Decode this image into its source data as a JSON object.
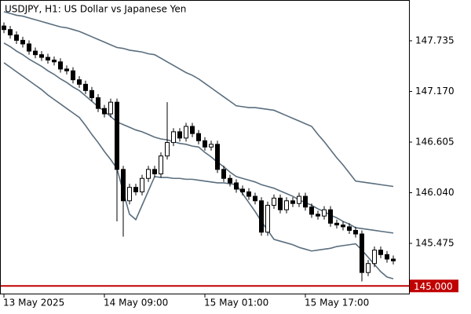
{
  "chart_data": {
    "type": "candlestick",
    "title": "USDJPY, H1:  US Dollar vs Japanese Yen",
    "categories": [
      "13 May 2025",
      null,
      null,
      null,
      null,
      null,
      null,
      null,
      null,
      null,
      null,
      null,
      null,
      null,
      null,
      null,
      "14 May 09:00",
      null,
      null,
      null,
      null,
      null,
      null,
      null,
      null,
      null,
      null,
      null,
      null,
      null,
      null,
      null,
      "15 May 01:00",
      null,
      null,
      null,
      null,
      null,
      null,
      null,
      null,
      null,
      null,
      null,
      null,
      null,
      null,
      null,
      "15 May 17:00",
      null,
      null,
      null,
      null,
      null,
      null,
      null,
      null,
      null,
      null,
      null,
      null,
      null,
      null
    ],
    "open": [
      147.9,
      147.86,
      147.8,
      147.74,
      147.7,
      147.62,
      147.58,
      147.55,
      147.52,
      147.5,
      147.42,
      147.4,
      147.3,
      147.25,
      147.18,
      147.1,
      146.98,
      146.92,
      147.05,
      146.3,
      145.95,
      146.1,
      146.05,
      146.2,
      146.3,
      146.25,
      146.45,
      146.6,
      146.72,
      146.65,
      146.78,
      146.7,
      146.62,
      146.55,
      146.58,
      146.3,
      146.2,
      146.15,
      146.08,
      146.05,
      146.0,
      145.95,
      145.6,
      145.9,
      145.98,
      145.85,
      145.95,
      145.92,
      146.0,
      145.88,
      145.8,
      145.78,
      145.85,
      145.7,
      145.68,
      145.66,
      145.62,
      145.58,
      145.15,
      145.25,
      145.4,
      145.35,
      145.3
    ],
    "high": [
      147.94,
      147.9,
      147.84,
      147.78,
      147.74,
      147.66,
      147.62,
      147.59,
      147.56,
      147.54,
      147.46,
      147.44,
      147.34,
      147.29,
      147.22,
      147.14,
      147.02,
      147.09,
      147.09,
      146.34,
      146.14,
      146.14,
      146.24,
      146.34,
      146.34,
      146.49,
      147.05,
      146.76,
      146.76,
      146.82,
      146.82,
      146.74,
      146.66,
      146.62,
      146.62,
      146.34,
      146.24,
      146.19,
      146.12,
      146.09,
      146.04,
      145.99,
      145.94,
      146.02,
      146.02,
      145.99,
      145.99,
      146.04,
      146.04,
      145.92,
      145.84,
      145.89,
      145.89,
      145.74,
      145.72,
      145.7,
      145.66,
      145.62,
      145.29,
      145.44,
      145.44,
      145.39,
      145.34
    ],
    "low": [
      147.82,
      147.76,
      147.7,
      147.66,
      147.58,
      147.54,
      147.51,
      147.48,
      147.46,
      147.38,
      147.36,
      147.26,
      147.21,
      147.14,
      147.06,
      146.94,
      146.88,
      146.88,
      145.72,
      145.55,
      145.91,
      146.01,
      146.01,
      146.16,
      146.21,
      146.21,
      146.41,
      146.56,
      146.61,
      146.61,
      146.66,
      146.58,
      146.51,
      146.51,
      146.26,
      146.16,
      146.11,
      146.04,
      146.01,
      145.96,
      145.91,
      145.56,
      145.56,
      145.86,
      145.81,
      145.81,
      145.88,
      145.88,
      145.84,
      145.76,
      145.74,
      145.74,
      145.66,
      145.64,
      145.62,
      145.58,
      145.54,
      145.05,
      145.11,
      145.21,
      145.31,
      145.26,
      145.24
    ],
    "close": [
      147.86,
      147.8,
      147.74,
      147.7,
      147.62,
      147.58,
      147.55,
      147.52,
      147.5,
      147.42,
      147.4,
      147.3,
      147.25,
      147.18,
      147.1,
      146.98,
      146.92,
      147.05,
      146.3,
      145.95,
      146.1,
      146.05,
      146.2,
      146.3,
      146.25,
      146.45,
      146.6,
      146.72,
      146.65,
      146.78,
      146.7,
      146.62,
      146.55,
      146.58,
      146.3,
      146.2,
      146.15,
      146.08,
      146.05,
      146.0,
      145.95,
      145.6,
      145.9,
      145.98,
      145.85,
      145.95,
      145.92,
      146.0,
      145.88,
      145.8,
      145.78,
      145.85,
      145.7,
      145.68,
      145.66,
      145.62,
      145.58,
      145.15,
      145.25,
      145.4,
      145.35,
      145.3,
      145.28
    ],
    "bands": [
      {
        "color": "#5a6e7e",
        "values": [
          148.06,
          148.04,
          148.02,
          148.01,
          147.99,
          147.97,
          147.95,
          147.93,
          147.91,
          147.89,
          147.88,
          147.86,
          147.84,
          147.81,
          147.78,
          147.75,
          147.72,
          147.69,
          147.66,
          147.65,
          147.63,
          147.62,
          147.61,
          147.59,
          147.58,
          147.54,
          147.5,
          147.46,
          147.42,
          147.38,
          147.35,
          147.31,
          147.26,
          147.21,
          147.16,
          147.11,
          147.06,
          147.01,
          147.0,
          146.99,
          146.99,
          146.98,
          146.97,
          146.96,
          146.93,
          146.9,
          146.87,
          146.84,
          146.81,
          146.78,
          146.69,
          146.61,
          146.52,
          146.43,
          146.35,
          146.26,
          146.17,
          146.16,
          146.15,
          146.14,
          146.13,
          146.12,
          146.11
        ]
      },
      {
        "color": "#5a6e7e",
        "values": [
          147.71,
          147.67,
          147.62,
          147.58,
          147.53,
          147.49,
          147.45,
          147.4,
          147.36,
          147.31,
          147.27,
          147.22,
          147.18,
          147.12,
          147.06,
          147.0,
          146.95,
          146.89,
          146.83,
          146.8,
          146.77,
          146.74,
          146.72,
          146.69,
          146.66,
          146.64,
          146.63,
          146.61,
          146.59,
          146.58,
          146.56,
          146.55,
          146.49,
          146.44,
          146.38,
          146.33,
          146.27,
          146.22,
          146.2,
          146.18,
          146.16,
          146.13,
          146.11,
          146.09,
          146.06,
          146.03,
          146.0,
          145.96,
          145.93,
          145.9,
          145.86,
          145.83,
          145.79,
          145.76,
          145.72,
          145.69,
          145.65,
          145.64,
          145.63,
          145.62,
          145.61,
          145.6,
          145.59
        ]
      },
      {
        "color": "#5a6e7e",
        "values": [
          147.49,
          147.44,
          147.39,
          147.34,
          147.29,
          147.24,
          147.19,
          147.13,
          147.08,
          147.03,
          146.98,
          146.93,
          146.88,
          146.79,
          146.69,
          146.6,
          146.5,
          146.41,
          146.31,
          146.05,
          145.8,
          145.74,
          145.9,
          146.06,
          146.22,
          146.21,
          146.21,
          146.2,
          146.2,
          146.19,
          146.19,
          146.18,
          146.17,
          146.16,
          146.15,
          146.15,
          146.14,
          146.13,
          146.03,
          145.93,
          145.83,
          145.72,
          145.62,
          145.52,
          145.5,
          145.48,
          145.46,
          145.43,
          145.41,
          145.39,
          145.4,
          145.41,
          145.42,
          145.44,
          145.45,
          145.46,
          145.47,
          145.4,
          145.32,
          145.24,
          145.16,
          145.1,
          145.08
        ]
      }
    ],
    "ylim": [
      144.906,
      148.19
    ],
    "yticks": [
      145.475,
      {
        "value": 146.04,
        "label": "146.040"
      },
      146.605,
      {
        "value": 147.17,
        "label": "147.170"
      },
      147.735
    ],
    "level": {
      "value": 145,
      "label": "145.000",
      "color": "#c00000"
    }
  }
}
